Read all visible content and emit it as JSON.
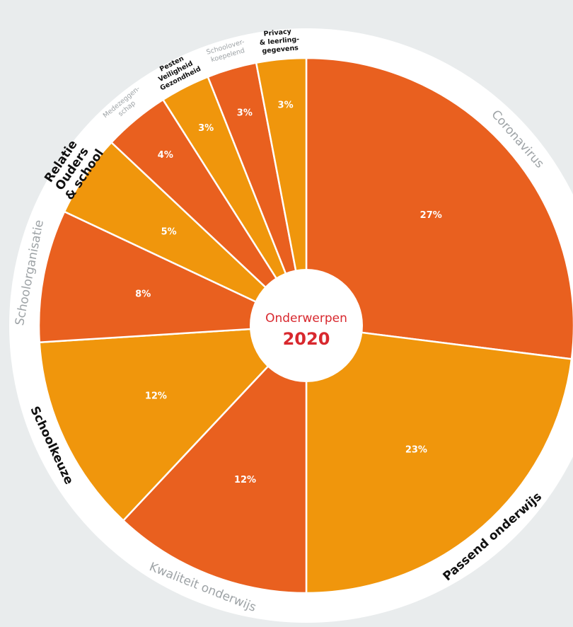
{
  "chart_data": {
    "type": "pie",
    "title": "Onderwerpen",
    "subtitle": "2020",
    "categories": [
      "Coronavirus",
      "Passend onderwijs",
      "Kwaliteit onderwijs",
      "Schoolkeuze",
      "Schoolorganisatie",
      "Relatie Ouders & school",
      "Medezeggen-schap",
      "Pesten Veiligheid Gezondheid",
      "Schoolover-koepelend",
      "Privacy & leerling-gegevens"
    ],
    "values": [
      27,
      23,
      12,
      12,
      8,
      5,
      4,
      3,
      3,
      3
    ],
    "value_labels": [
      "27%",
      "23%",
      "12%",
      "12%",
      "8%",
      "5%",
      "4%",
      "3%",
      "3%",
      "3%"
    ],
    "colors": [
      "#e9601f",
      "#f0960c",
      "#e9601f",
      "#f0960c",
      "#e9601f",
      "#f0960c",
      "#e9601f",
      "#f0960c",
      "#e9601f",
      "#f0960c"
    ],
    "label_colors": [
      "#9ea3a6",
      "#111111",
      "#9ea3a6",
      "#111111",
      "#9ea3a6",
      "#111111",
      "#9ea3a6",
      "#111111",
      "#9ea3a6",
      "#111111"
    ]
  }
}
